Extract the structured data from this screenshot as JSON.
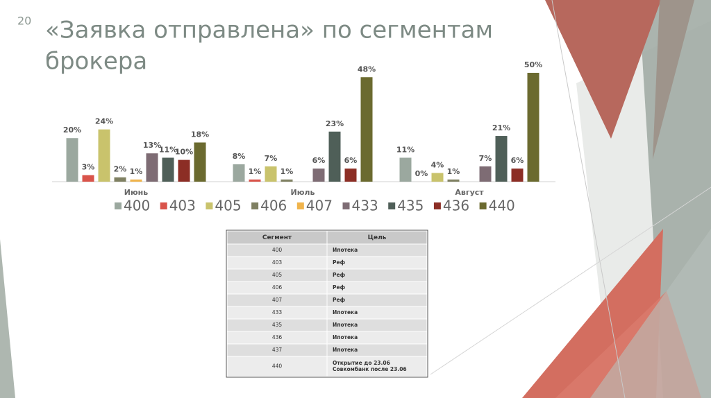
{
  "slide_number": "20",
  "title_lines": [
    "«Заявка отправлена» по сегментам",
    "брокера"
  ],
  "chart_data": {
    "type": "bar",
    "categories": [
      "Июнь",
      "Июль",
      "Август"
    ],
    "series": [
      {
        "name": "400",
        "color": "#9ba89f",
        "values": [
          20,
          8,
          11
        ],
        "value_labels": [
          "20%",
          "8%",
          "11%"
        ]
      },
      {
        "name": "403",
        "color": "#d9534a",
        "values": [
          3,
          1,
          0
        ],
        "value_labels": [
          "3%",
          "1%",
          "0%"
        ]
      },
      {
        "name": "405",
        "color": "#c9c36c",
        "values": [
          24,
          7,
          4
        ],
        "value_labels": [
          "24%",
          "7%",
          "4%"
        ]
      },
      {
        "name": "406",
        "color": "#7f8062",
        "values": [
          2,
          1,
          1
        ],
        "value_labels": [
          "2%",
          "1%",
          "1%"
        ]
      },
      {
        "name": "407",
        "color": "#f0b44c",
        "values": [
          1,
          null,
          null
        ],
        "value_labels": [
          "1%",
          null,
          null
        ]
      },
      {
        "name": "433",
        "color": "#7e6c74",
        "values": [
          13,
          6,
          7
        ],
        "value_labels": [
          "13%",
          "6%",
          "7%"
        ]
      },
      {
        "name": "435",
        "color": "#4f5f58",
        "values": [
          11,
          23,
          21
        ],
        "value_labels": [
          "11%",
          "23%",
          "21%"
        ]
      },
      {
        "name": "436",
        "color": "#8c2e25",
        "values": [
          10,
          6,
          6
        ],
        "value_labels": [
          "10%",
          "6%",
          "6%"
        ]
      },
      {
        "name": "440",
        "color": "#6b6a2f",
        "values": [
          18,
          48,
          50
        ],
        "value_labels": [
          "18%",
          "48%",
          "50%"
        ]
      }
    ],
    "legend": "bottom"
  },
  "table": {
    "header": [
      "Сегмент",
      "Цель"
    ],
    "rows": [
      [
        "400",
        "Ипотека"
      ],
      [
        "403",
        "Реф"
      ],
      [
        "405",
        "Реф"
      ],
      [
        "406",
        "Реф"
      ],
      [
        "407",
        "Реф"
      ],
      [
        "433",
        "Ипотека"
      ],
      [
        "435",
        "Ипотека"
      ],
      [
        "436",
        "Ипотека"
      ],
      [
        "437",
        "Ипотека"
      ],
      [
        "440",
        [
          "Открытие до 23.06",
          "Совкомбанк после 23.06"
        ]
      ]
    ]
  }
}
